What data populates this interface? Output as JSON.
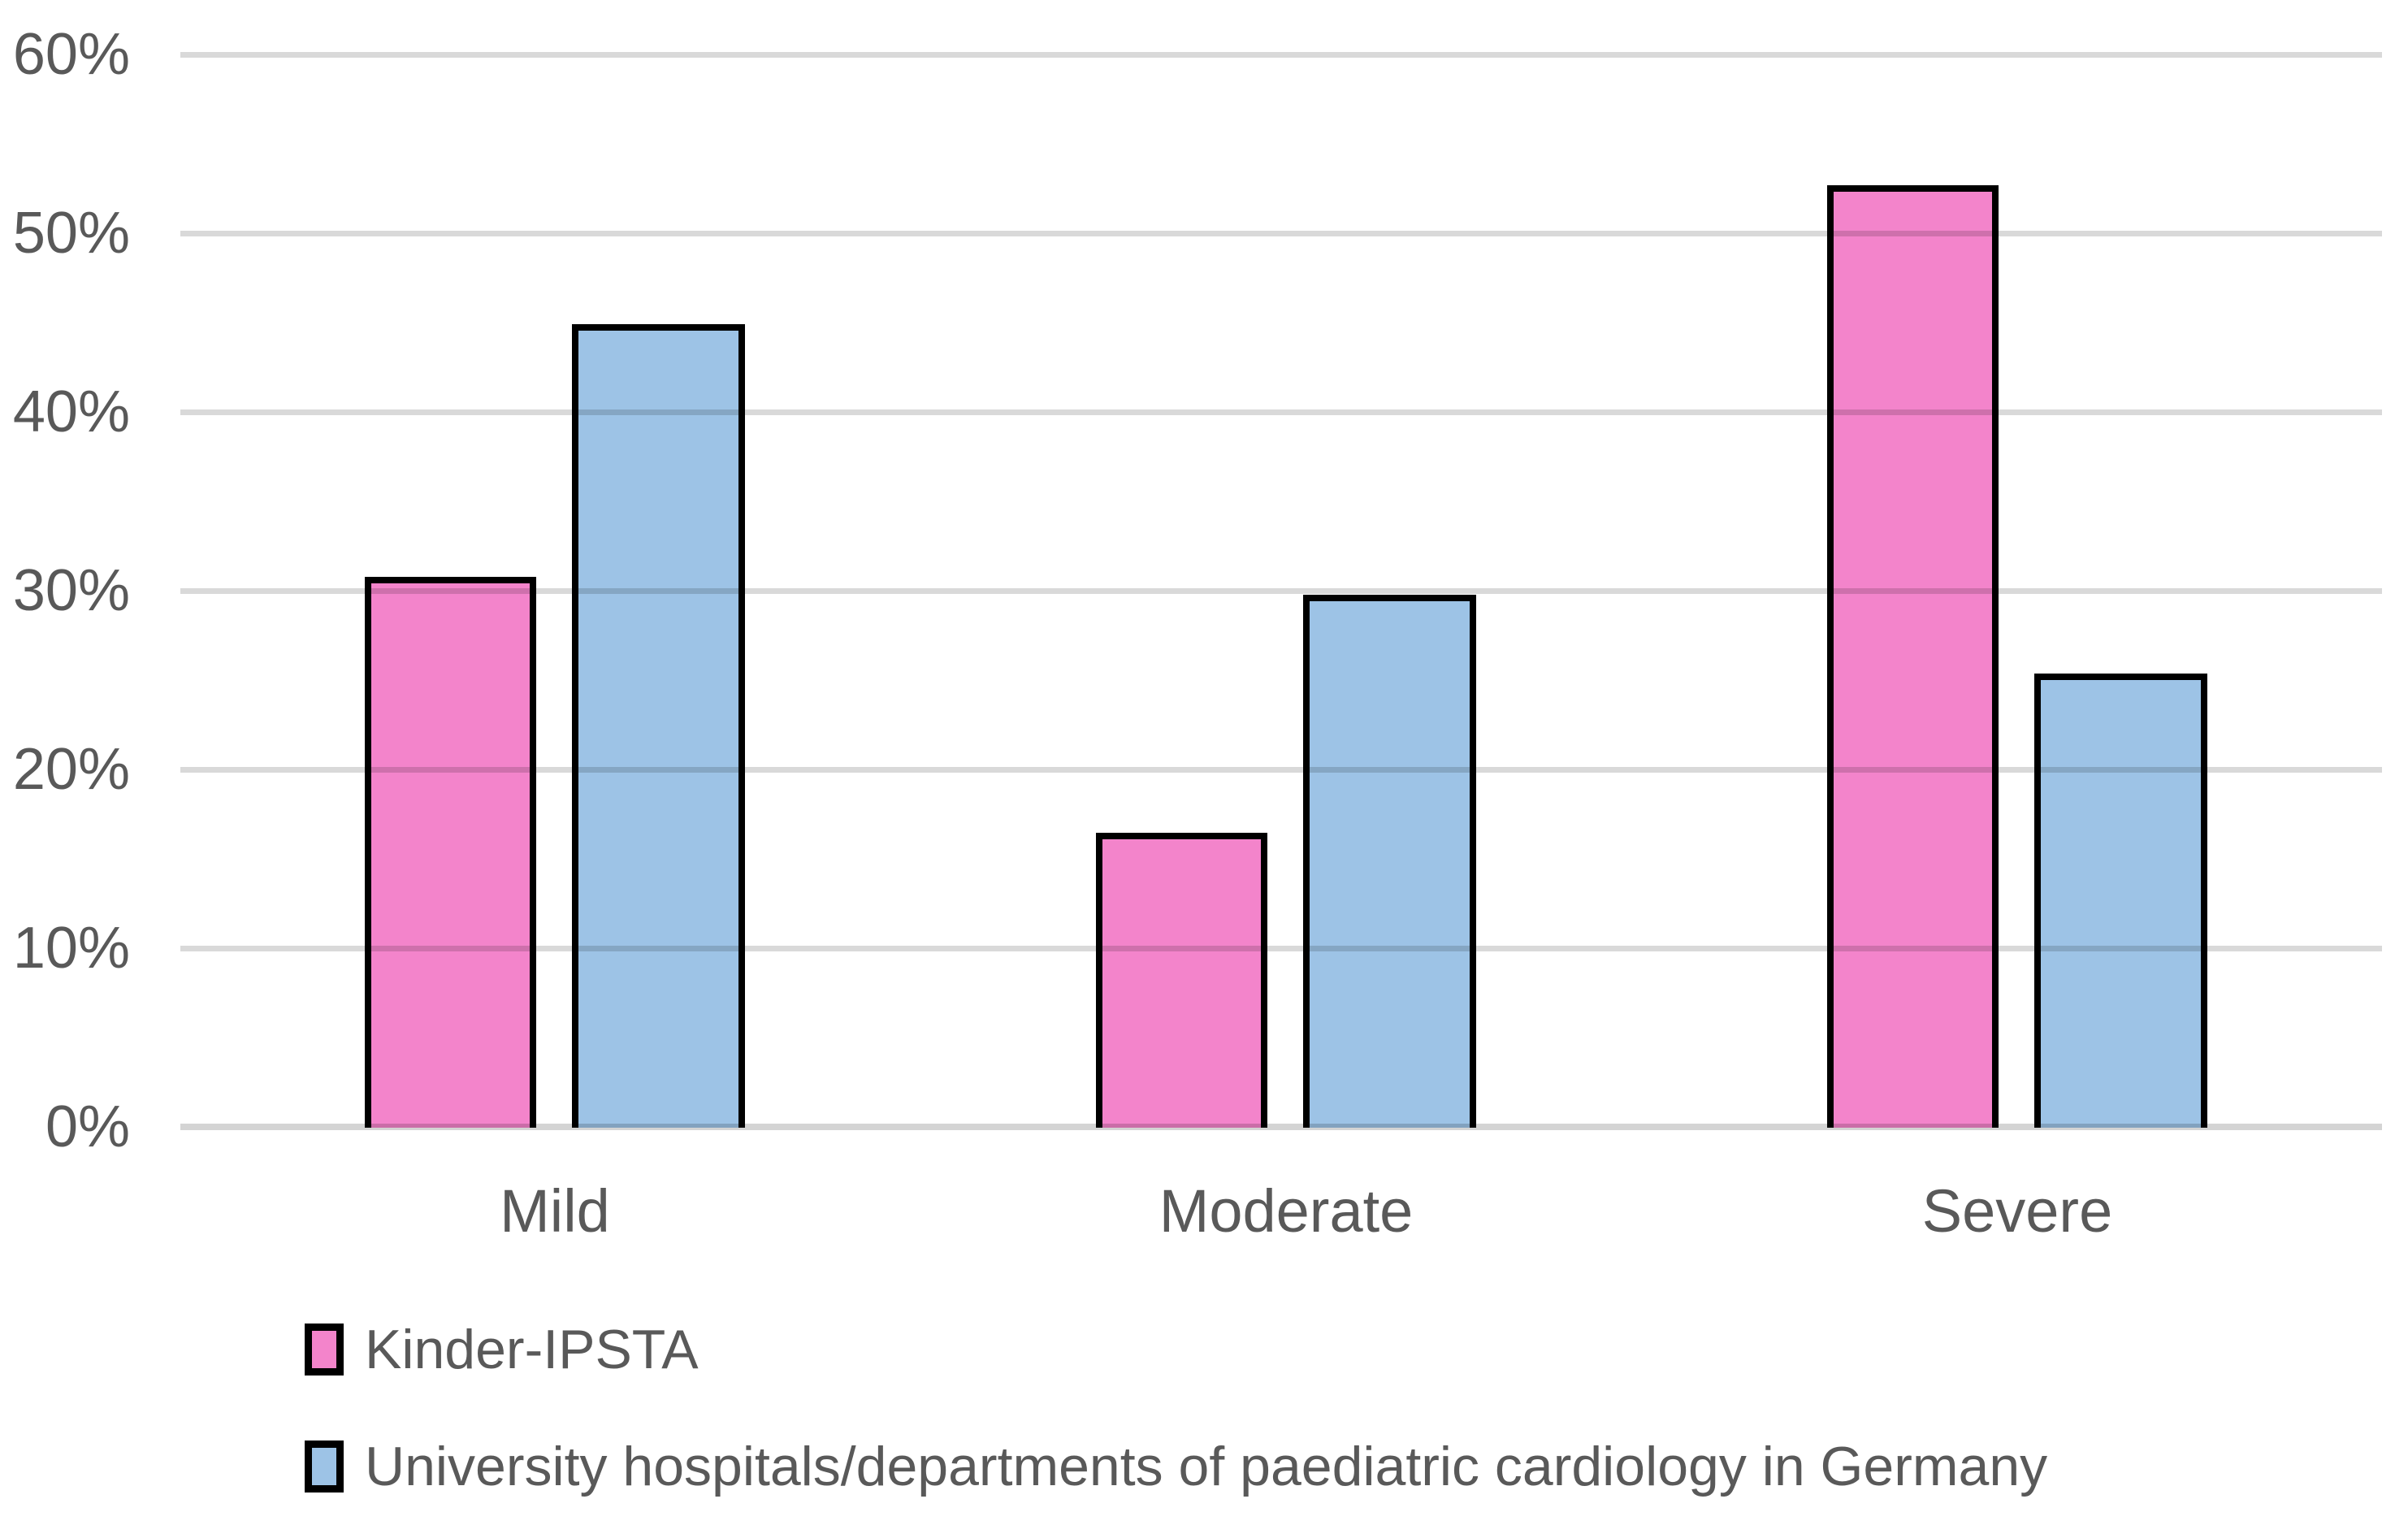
{
  "chart_data": {
    "type": "bar",
    "title": "",
    "categories": [
      "Mild",
      "Moderate",
      "Severe"
    ],
    "series": [
      {
        "name": "Kinder-IPSTA",
        "key": "kinder-ipsta",
        "color": "#F384CB",
        "values": [
          30.8,
          16.5,
          52.7
        ]
      },
      {
        "name": "University hospitals/departments of paediatric cardiology in Germany",
        "key": "university-hospitals",
        "color": "#9DC3E6",
        "values": [
          44.9,
          29.8,
          25.4
        ]
      }
    ],
    "y_axis": {
      "tick_labels": [
        "60%",
        "50%",
        "40%",
        "30%",
        "20%",
        "10%",
        "0%"
      ],
      "min": 0,
      "max": 60,
      "unit": "%"
    },
    "x_axis": {
      "tick_labels": [
        "Mild",
        "Moderate",
        "Severe"
      ]
    },
    "grid": true,
    "legend_position": "bottom-left",
    "styles": {
      "bar_border": "#000000",
      "gridline": "#D9D9D9",
      "text": "#595959",
      "background": "#FFFFFF"
    }
  }
}
